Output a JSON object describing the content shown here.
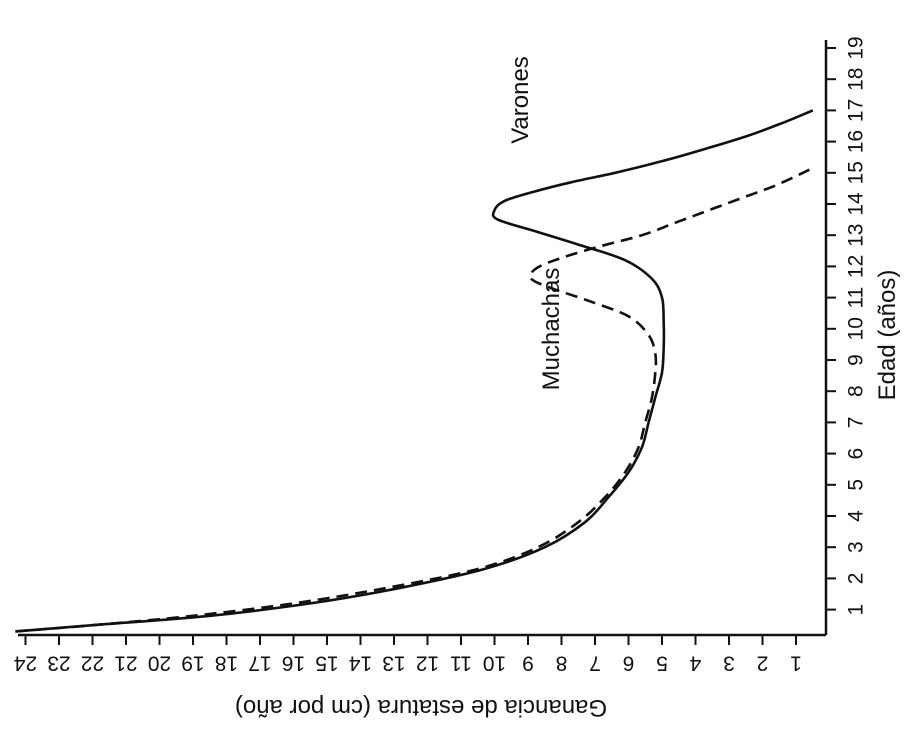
{
  "chart_data": {
    "type": "line",
    "orientation": "rotated-90",
    "xlabel": "Edad (años)",
    "ylabel": "Ganancia de estatura (cm por año)",
    "xlim": [
      0,
      19
    ],
    "ylim": [
      0,
      24.5
    ],
    "x_ticks": [
      1,
      2,
      3,
      4,
      5,
      6,
      7,
      8,
      9,
      10,
      11,
      12,
      13,
      14,
      15,
      16,
      17,
      18,
      19
    ],
    "y_ticks": [
      1,
      2,
      3,
      4,
      5,
      6,
      7,
      8,
      9,
      10,
      11,
      12,
      13,
      14,
      15,
      16,
      17,
      18,
      19,
      20,
      21,
      22,
      23,
      24
    ],
    "grid": false,
    "legend": "none",
    "series": [
      {
        "name": "Varones",
        "style": "solid",
        "x": [
          0.3,
          0.5,
          0.8,
          1.2,
          1.7,
          2.3,
          3.0,
          3.8,
          4.6,
          5.4,
          6.2,
          7.0,
          7.8,
          8.6,
          9.4,
          10.2,
          11.0,
          11.6,
          12.2,
          12.7,
          13.1,
          13.5,
          13.8,
          14.1,
          14.4,
          14.7,
          15.0,
          15.4,
          15.8,
          16.2,
          16.6,
          17.0
        ],
        "y": [
          24.3,
          22.0,
          18.5,
          15.5,
          12.8,
          10.3,
          8.5,
          7.3,
          6.6,
          6.0,
          5.6,
          5.4,
          5.2,
          5.0,
          4.95,
          4.95,
          5.0,
          5.3,
          6.1,
          7.5,
          8.7,
          9.9,
          10.0,
          9.7,
          8.8,
          7.7,
          6.4,
          4.9,
          3.6,
          2.4,
          1.4,
          0.5
        ],
        "label": "Varones"
      },
      {
        "name": "Muchachas",
        "style": "dashed",
        "x": [
          0.3,
          0.5,
          0.8,
          1.2,
          1.7,
          2.3,
          3.0,
          3.8,
          4.6,
          5.4,
          6.2,
          7.0,
          7.8,
          8.6,
          9.2,
          9.8,
          10.4,
          10.9,
          11.3,
          11.6,
          11.9,
          12.2,
          12.6,
          13.0,
          13.4,
          13.8,
          14.2,
          14.6,
          15.1
        ],
        "y": [
          24.3,
          22.0,
          19.0,
          16.0,
          13.2,
          10.5,
          8.7,
          7.5,
          6.7,
          6.1,
          5.7,
          5.5,
          5.3,
          5.2,
          5.2,
          5.4,
          6.0,
          7.2,
          8.3,
          8.9,
          8.8,
          8.2,
          7.0,
          5.6,
          4.6,
          3.6,
          2.6,
          1.6,
          0.6
        ],
        "label": "Muchachas"
      }
    ]
  }
}
